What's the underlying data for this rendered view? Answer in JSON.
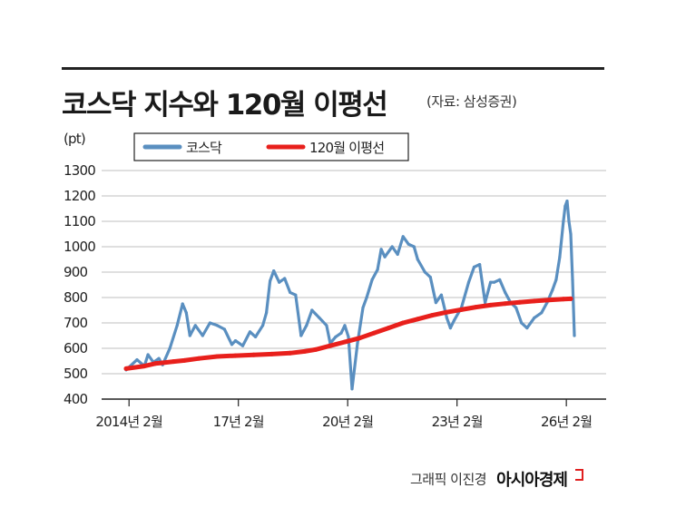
{
  "header": {
    "title": "코스닥 지수와 120월 이평선",
    "source": "(자료: 삼성증권)"
  },
  "footer": {
    "credit": "그래픽 이진경",
    "brand": "아시아경제"
  },
  "colors": {
    "kosdaq": "#5a8fc0",
    "ma120": "#e8201c",
    "grid": "#bfbfbf",
    "axis": "#222222"
  },
  "chart_data": {
    "type": "line",
    "ylabel": "(pt)",
    "ylim": [
      400,
      1300
    ],
    "yticks": [
      400,
      500,
      600,
      700,
      800,
      900,
      1000,
      1100,
      1200,
      1300
    ],
    "xlim": [
      2014.0,
      2026.4
    ],
    "xticks": [
      {
        "x": 2014.08,
        "label": "2014년 2월"
      },
      {
        "x": 2017.08,
        "label": "17년 2월"
      },
      {
        "x": 2020.08,
        "label": "20년 2월"
      },
      {
        "x": 2023.08,
        "label": "23년 2월"
      },
      {
        "x": 2026.08,
        "label": "26년 2월"
      }
    ],
    "legend_position": "top",
    "series": [
      {
        "name": "코스닥",
        "key": "kosdaq",
        "points": [
          [
            2014.0,
            515
          ],
          [
            2014.3,
            555
          ],
          [
            2014.5,
            530
          ],
          [
            2014.6,
            575
          ],
          [
            2014.75,
            545
          ],
          [
            2014.9,
            560
          ],
          [
            2015.0,
            535
          ],
          [
            2015.2,
            600
          ],
          [
            2015.4,
            690
          ],
          [
            2015.55,
            775
          ],
          [
            2015.65,
            740
          ],
          [
            2015.75,
            650
          ],
          [
            2015.9,
            690
          ],
          [
            2016.1,
            650
          ],
          [
            2016.3,
            700
          ],
          [
            2016.5,
            690
          ],
          [
            2016.7,
            675
          ],
          [
            2016.9,
            615
          ],
          [
            2017.0,
            630
          ],
          [
            2017.2,
            610
          ],
          [
            2017.4,
            665
          ],
          [
            2017.55,
            645
          ],
          [
            2017.75,
            690
          ],
          [
            2017.85,
            740
          ],
          [
            2017.95,
            865
          ],
          [
            2018.05,
            905
          ],
          [
            2018.2,
            860
          ],
          [
            2018.35,
            875
          ],
          [
            2018.5,
            820
          ],
          [
            2018.65,
            810
          ],
          [
            2018.8,
            650
          ],
          [
            2018.95,
            690
          ],
          [
            2019.1,
            750
          ],
          [
            2019.3,
            720
          ],
          [
            2019.5,
            690
          ],
          [
            2019.6,
            620
          ],
          [
            2019.75,
            645
          ],
          [
            2019.9,
            660
          ],
          [
            2020.0,
            690
          ],
          [
            2020.1,
            645
          ],
          [
            2020.2,
            440
          ],
          [
            2020.35,
            620
          ],
          [
            2020.5,
            760
          ],
          [
            2020.6,
            800
          ],
          [
            2020.75,
            870
          ],
          [
            2020.9,
            910
          ],
          [
            2021.0,
            990
          ],
          [
            2021.1,
            960
          ],
          [
            2021.3,
            1000
          ],
          [
            2021.45,
            970
          ],
          [
            2021.6,
            1040
          ],
          [
            2021.75,
            1010
          ],
          [
            2021.9,
            1000
          ],
          [
            2022.0,
            950
          ],
          [
            2022.2,
            900
          ],
          [
            2022.35,
            880
          ],
          [
            2022.5,
            780
          ],
          [
            2022.65,
            810
          ],
          [
            2022.8,
            720
          ],
          [
            2022.9,
            680
          ],
          [
            2023.0,
            710
          ],
          [
            2023.2,
            760
          ],
          [
            2023.4,
            860
          ],
          [
            2023.55,
            920
          ],
          [
            2023.7,
            930
          ],
          [
            2023.85,
            780
          ],
          [
            2024.0,
            860
          ],
          [
            2024.1,
            860
          ],
          [
            2024.25,
            870
          ],
          [
            2024.4,
            820
          ],
          [
            2024.55,
            780
          ],
          [
            2024.7,
            760
          ],
          [
            2024.85,
            700
          ],
          [
            2025.0,
            680
          ],
          [
            2025.2,
            720
          ],
          [
            2025.4,
            740
          ],
          [
            2025.55,
            780
          ],
          [
            2025.7,
            830
          ],
          [
            2025.8,
            870
          ],
          [
            2025.9,
            960
          ],
          [
            2026.0,
            1100
          ],
          [
            2026.05,
            1160
          ],
          [
            2026.1,
            1180
          ],
          [
            2026.15,
            1100
          ],
          [
            2026.2,
            1050
          ],
          [
            2026.25,
            870
          ],
          [
            2026.3,
            650
          ]
        ]
      },
      {
        "name": "120월 이평선",
        "key": "ma120",
        "points": [
          [
            2014.0,
            520
          ],
          [
            2014.5,
            530
          ],
          [
            2014.8,
            540
          ],
          [
            2015.0,
            543
          ],
          [
            2015.3,
            548
          ],
          [
            2015.6,
            552
          ],
          [
            2016.0,
            560
          ],
          [
            2016.5,
            568
          ],
          [
            2017.0,
            571
          ],
          [
            2017.5,
            574
          ],
          [
            2018.0,
            577
          ],
          [
            2018.5,
            581
          ],
          [
            2018.9,
            588
          ],
          [
            2019.2,
            595
          ],
          [
            2019.6,
            610
          ],
          [
            2020.0,
            625
          ],
          [
            2020.4,
            640
          ],
          [
            2020.8,
            660
          ],
          [
            2021.2,
            680
          ],
          [
            2021.6,
            700
          ],
          [
            2022.0,
            715
          ],
          [
            2022.4,
            730
          ],
          [
            2022.8,
            742
          ],
          [
            2023.2,
            752
          ],
          [
            2023.6,
            762
          ],
          [
            2024.0,
            770
          ],
          [
            2024.4,
            776
          ],
          [
            2024.8,
            781
          ],
          [
            2025.2,
            786
          ],
          [
            2025.6,
            790
          ],
          [
            2026.0,
            794
          ],
          [
            2026.2,
            795
          ]
        ]
      }
    ]
  }
}
